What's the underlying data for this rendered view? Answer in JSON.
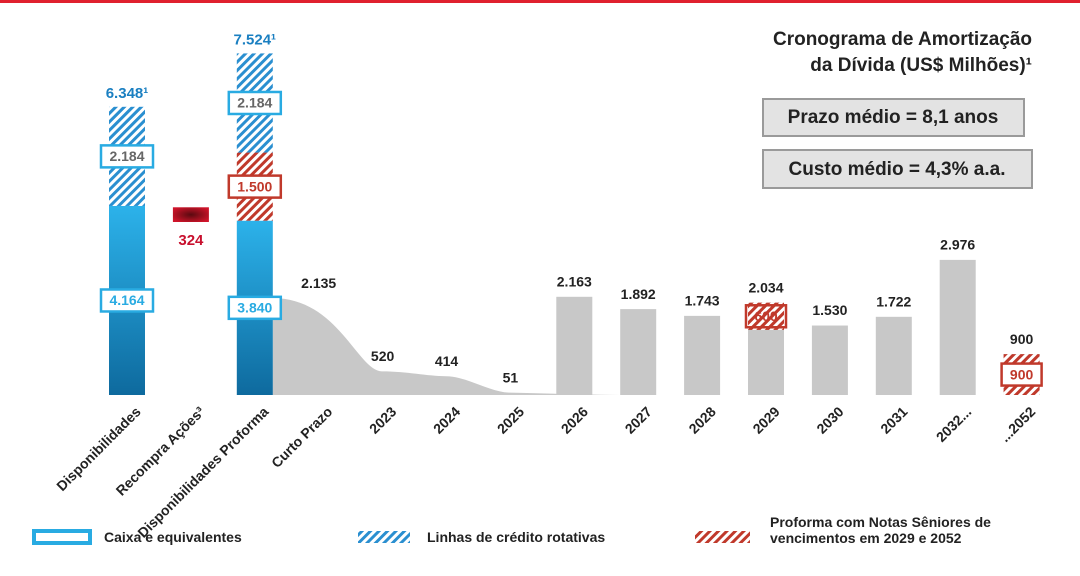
{
  "chart_data": {
    "type": "bar",
    "title": [
      "Cronograma de Amortização",
      "da Dívida (US$ Milhões)¹"
    ],
    "annotations": [
      "Prazo médio = 8,1 anos",
      "Custo médio = 4,3% a.a."
    ],
    "categories": [
      "Disponibilidades",
      "Recompra Ações³",
      "Disponibilidades Proforma",
      "Curto Prazo",
      "2023",
      "2024",
      "2025",
      "2026",
      "2027",
      "2028",
      "2029",
      "2030",
      "2031",
      "2032...",
      "...2052"
    ],
    "series": [
      {
        "name": "Caixa e equivalentes",
        "color": "#29abe2",
        "values": [
          4164,
          null,
          3840,
          null,
          null,
          null,
          null,
          null,
          null,
          null,
          null,
          null,
          null,
          null,
          null
        ],
        "value_labels": [
          "4.164",
          null,
          "3.840",
          null,
          null,
          null,
          null,
          null,
          null,
          null,
          null,
          null,
          null,
          null,
          null
        ]
      },
      {
        "name": "Linhas de crédito rotativas",
        "color": "#2a8fd0",
        "values": [
          2184,
          null,
          2184,
          null,
          null,
          null,
          null,
          null,
          null,
          null,
          null,
          null,
          null,
          null,
          null
        ],
        "value_labels": [
          "2.184",
          null,
          "2.184",
          null,
          null,
          null,
          null,
          null,
          null,
          null,
          null,
          null,
          null,
          null,
          null
        ]
      },
      {
        "name": "Proforma com Notas Sêniores de vencimentos em 2029 e 2052",
        "color": "#c0392b",
        "values": [
          null,
          null,
          1500,
          null,
          null,
          null,
          null,
          null,
          null,
          null,
          600,
          null,
          null,
          null,
          900
        ],
        "value_labels": [
          null,
          null,
          "1.500",
          null,
          null,
          null,
          null,
          null,
          null,
          null,
          "600",
          null,
          null,
          null,
          "900"
        ]
      }
    ],
    "buyback": {
      "color": "#c8102e",
      "values": [
        null,
        324,
        null,
        null,
        null,
        null,
        null,
        null,
        null,
        null,
        null,
        null,
        null,
        null,
        null
      ]
    },
    "schedule": {
      "color": "#c8c8c8",
      "values": [
        null,
        null,
        null,
        2135,
        520,
        414,
        51,
        2163,
        1892,
        1743,
        2034,
        1530,
        1722,
        2976,
        900
      ],
      "value_labels": [
        null,
        null,
        null,
        "2.135",
        "520",
        "414",
        "51",
        "2.163",
        "1.892",
        "1.743",
        "2.034",
        "1.530",
        "1.722",
        "2.976",
        "900"
      ]
    },
    "totals": {
      "values": [
        6348,
        null,
        7524,
        null,
        null,
        null,
        null,
        null,
        null,
        null,
        null,
        null,
        null,
        null,
        null
      ],
      "value_labels": [
        "6.348¹",
        null,
        "7.524¹",
        null,
        null,
        null,
        null,
        null,
        null,
        null,
        null,
        null,
        null,
        null,
        null
      ]
    }
  }
}
